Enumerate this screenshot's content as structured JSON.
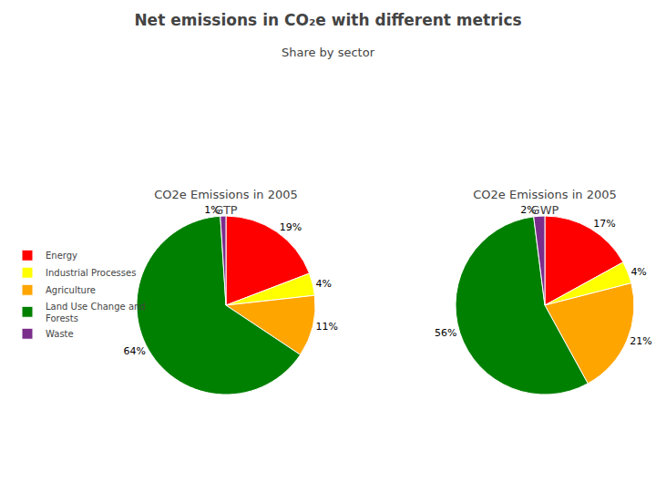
{
  "title": "Net emissions in CO₂e with different metrics",
  "subtitle": "Share by sector",
  "chart_data": [
    {
      "type": "pie",
      "title": "CO2e Emissions in 2005\nGTP",
      "categories": [
        "Energy",
        "Industrial Processes",
        "Agriculture",
        "Land Use Change and\nForests",
        "Waste"
      ],
      "values": [
        19,
        4,
        11,
        64,
        1
      ],
      "value_labels": [
        "19%",
        "4%",
        "11%",
        "64%",
        "1%"
      ],
      "colors": [
        "#FF0000",
        "#FFFF00",
        "#FFA500",
        "#008000",
        "#7B2D8B"
      ],
      "data_labels": true,
      "legend": "left"
    },
    {
      "type": "pie",
      "title": "CO2e Emissions in 2005\nGWP",
      "categories": [
        "Energy",
        "Industrial Processes",
        "Agriculture",
        "Land Use Change and\nForests",
        "Waste"
      ],
      "values": [
        17,
        4,
        21,
        56,
        2
      ],
      "value_labels": [
        "17%",
        "4%",
        "21%",
        "56%",
        "2%"
      ],
      "colors": [
        "#FF0000",
        "#FFFF00",
        "#FFA500",
        "#008000",
        "#7B2D8B"
      ],
      "data_labels": true,
      "legend": "left"
    }
  ]
}
